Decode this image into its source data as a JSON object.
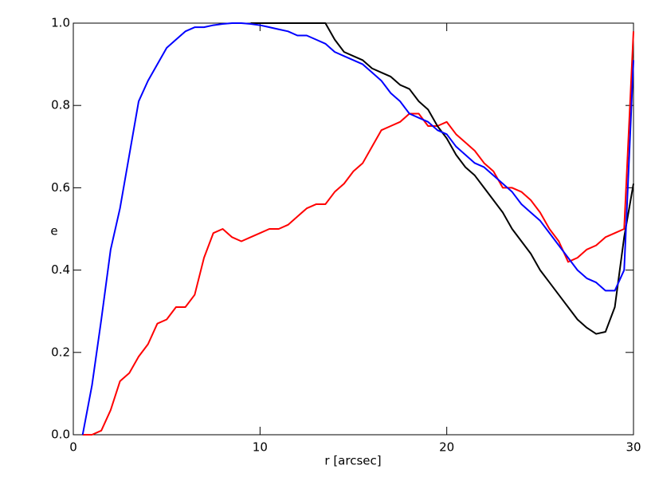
{
  "chart_data": {
    "type": "line",
    "xlabel": "r [arcsec]",
    "ylabel": "e",
    "x": [
      0,
      0.5,
      1,
      1.5,
      2,
      2.5,
      3,
      3.5,
      4,
      4.5,
      5,
      5.5,
      6,
      6.5,
      7,
      7.5,
      8,
      8.5,
      9,
      9.5,
      10,
      10.5,
      11,
      11.5,
      12,
      12.5,
      13,
      13.5,
      14,
      14.5,
      15,
      15.5,
      16,
      16.5,
      17,
      17.5,
      18,
      18.5,
      19,
      19.5,
      20,
      20.5,
      21,
      21.5,
      22,
      22.5,
      23,
      23.5,
      24,
      24.5,
      25,
      25.5,
      26,
      26.5,
      27,
      27.5,
      28,
      28.5,
      29,
      29.5,
      30
    ],
    "series": [
      {
        "color": "#ff0000",
        "values": [
          null,
          0.0,
          0.0,
          0.01,
          0.06,
          0.13,
          0.15,
          0.19,
          0.22,
          0.27,
          0.28,
          0.31,
          0.31,
          0.34,
          0.43,
          0.49,
          0.5,
          0.48,
          0.47,
          0.48,
          0.49,
          0.5,
          0.5,
          0.51,
          0.53,
          0.55,
          0.56,
          0.56,
          0.59,
          0.61,
          0.64,
          0.66,
          0.7,
          0.74,
          0.75,
          0.76,
          0.78,
          0.78,
          0.75,
          0.75,
          0.76,
          0.73,
          0.71,
          0.69,
          0.66,
          0.64,
          0.6,
          0.6,
          0.59,
          0.57,
          0.54,
          0.5,
          0.47,
          0.42,
          0.43,
          0.45,
          0.46,
          0.48,
          0.49,
          0.5,
          0.98
        ]
      },
      {
        "color": "#000000",
        "values": [
          null,
          null,
          null,
          null,
          null,
          null,
          null,
          null,
          null,
          null,
          null,
          null,
          null,
          null,
          null,
          null,
          null,
          null,
          null,
          1.0,
          1.0,
          1.0,
          1.0,
          1.0,
          1.0,
          1.0,
          1.0,
          1.0,
          0.96,
          0.93,
          0.92,
          0.91,
          0.89,
          0.88,
          0.87,
          0.85,
          0.84,
          0.81,
          0.79,
          0.75,
          0.72,
          0.68,
          0.65,
          0.63,
          0.6,
          0.57,
          0.54,
          0.5,
          0.47,
          0.44,
          0.4,
          0.37,
          0.34,
          0.31,
          0.28,
          0.26,
          0.245,
          0.25,
          0.31,
          0.48,
          0.61
        ]
      },
      {
        "color": "#0000ff",
        "values": [
          null,
          0.0,
          0.12,
          0.28,
          0.45,
          0.55,
          0.68,
          0.81,
          0.86,
          0.9,
          0.94,
          0.96,
          0.98,
          0.99,
          0.99,
          0.995,
          0.998,
          1.0,
          1.0,
          0.998,
          0.995,
          0.99,
          0.985,
          0.98,
          0.97,
          0.97,
          0.96,
          0.95,
          0.93,
          0.92,
          0.91,
          0.9,
          0.88,
          0.86,
          0.83,
          0.81,
          0.78,
          0.77,
          0.76,
          0.74,
          0.73,
          0.7,
          0.68,
          0.66,
          0.65,
          0.63,
          0.61,
          0.59,
          0.56,
          0.54,
          0.52,
          0.49,
          0.46,
          0.43,
          0.4,
          0.38,
          0.37,
          0.35,
          0.35,
          0.4,
          0.91
        ]
      }
    ],
    "xlim": [
      0,
      30
    ],
    "xticks": [
      0,
      10,
      20,
      30
    ],
    "ylim": [
      0,
      1
    ],
    "yticks": [
      {
        "value": 0,
        "label": "0.0"
      },
      0.2,
      0.4,
      0.6,
      0.8,
      {
        "value": 1,
        "label": "1.0"
      }
    ]
  }
}
